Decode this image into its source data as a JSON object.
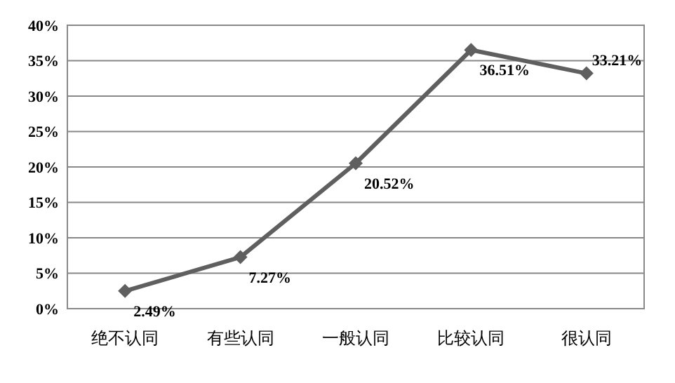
{
  "chart_data": {
    "type": "line",
    "categories": [
      "绝不认同",
      "有些认同",
      "一般认同",
      "比较认同",
      "很认同"
    ],
    "series": [
      {
        "color": "#5f5f5f",
        "values": [
          2.49,
          7.27,
          20.52,
          36.51,
          33.21
        ],
        "value_labels": [
          "2.49%",
          "7.27%",
          "20.52%",
          "36.51%",
          "33.21%"
        ]
      }
    ],
    "ylim": [
      0,
      40
    ],
    "yticks": [
      {
        "value": 0,
        "label": "0%"
      },
      {
        "value": 5,
        "label": "5%"
      },
      {
        "value": 10,
        "label": "10%"
      },
      {
        "value": 15,
        "label": "15%"
      },
      {
        "value": 20,
        "label": "20%"
      },
      {
        "value": 25,
        "label": "25%"
      },
      {
        "value": 30,
        "label": "30%"
      },
      {
        "value": 35,
        "label": "35%"
      },
      {
        "value": 40,
        "label": "40%"
      }
    ],
    "grid": "y",
    "marker": "diamond",
    "line_style": "solid"
  }
}
